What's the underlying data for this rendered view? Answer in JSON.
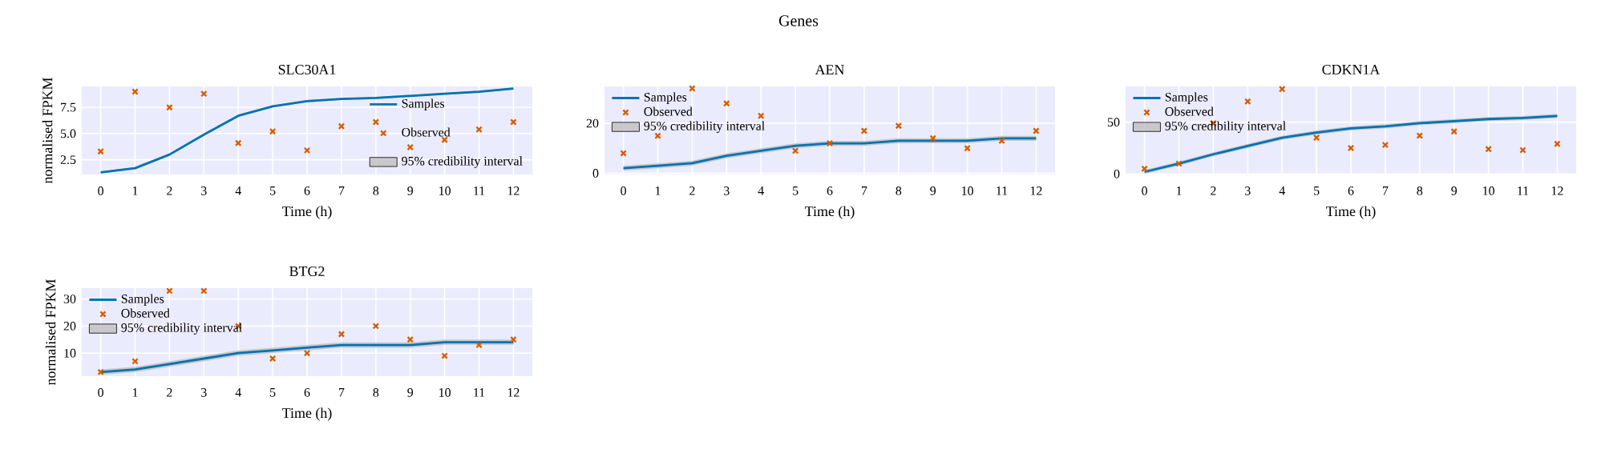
{
  "chart_data": [
    {
      "type": "line",
      "title": "SLC30A1",
      "ylabel": "normalised FPKM",
      "xlabel": "Time (h)",
      "annotations": [
        "Genes"
      ],
      "grid": true,
      "legend": "bottom right",
      "x": [
        0,
        1,
        2,
        3,
        4,
        5,
        6,
        7,
        8,
        9,
        10,
        11,
        12
      ],
      "xlim": [
        -0.55,
        12.55
      ],
      "xticks": [
        0,
        1,
        2,
        3,
        4,
        5,
        6,
        7,
        8,
        9,
        10,
        11,
        12
      ],
      "ylim": [
        1.1,
        9.5
      ],
      "yticks": [
        2.5,
        {
          "value": 5,
          "label": "5.0"
        },
        7.5
      ],
      "series": [
        {
          "name": "Samples",
          "type": "line",
          "color": "#0173b2",
          "marker": "none",
          "values": [
            1.3,
            1.7,
            3.0,
            4.9,
            6.7,
            7.6,
            8.1,
            8.3,
            8.4,
            8.6,
            8.8,
            9.0,
            9.3
          ]
        },
        {
          "name": "Observed",
          "type": "scatter",
          "color": "#d55e00",
          "marker": "cross",
          "values": [
            3.3,
            9.0,
            7.5,
            8.8,
            4.1,
            5.2,
            3.4,
            5.7,
            6.1,
            3.7,
            4.4,
            5.4,
            6.1
          ]
        },
        {
          "name": "95% credibility interval",
          "type": "line",
          "color": "#bfbfbf",
          "values": [
            null,
            null,
            null,
            null,
            null,
            null,
            null,
            null,
            null,
            null,
            null,
            null,
            null
          ],
          "lower": [
            1.2,
            1.6,
            2.9,
            4.8,
            6.6,
            7.5,
            8.0,
            8.2,
            8.3,
            8.5,
            8.7,
            8.9,
            9.2
          ],
          "upper": [
            1.4,
            1.8,
            3.1,
            5.0,
            6.8,
            7.7,
            8.2,
            8.4,
            8.5,
            8.7,
            8.9,
            9.1,
            9.4
          ]
        }
      ]
    },
    {
      "type": "line",
      "title": "AEN",
      "xlabel": "Time (h)",
      "grid": true,
      "legend": "top left",
      "x": [
        0,
        1,
        2,
        3,
        4,
        5,
        6,
        7,
        8,
        9,
        10,
        11,
        12
      ],
      "xlim": [
        -0.55,
        12.55
      ],
      "xticks": [
        0,
        1,
        2,
        3,
        4,
        5,
        6,
        7,
        8,
        9,
        10,
        11,
        12
      ],
      "ylim": [
        -0.5,
        34.8
      ],
      "yticks": [
        0,
        20
      ],
      "series": [
        {
          "name": "Samples",
          "type": "line",
          "color": "#0173b2",
          "marker": "none",
          "values": [
            2,
            3,
            4,
            7,
            9,
            11,
            12,
            12,
            13,
            13,
            13,
            14,
            14
          ]
        },
        {
          "name": "Observed",
          "type": "scatter",
          "color": "#d55e00",
          "marker": "cross",
          "values": [
            8,
            15,
            34,
            28,
            23,
            9,
            12,
            17,
            19,
            14,
            10,
            13,
            17
          ]
        },
        {
          "name": "95% credibility interval",
          "type": "line",
          "color": "#bfbfbf",
          "values": [
            null,
            null,
            null,
            null,
            null,
            null,
            null,
            null,
            null,
            null,
            null,
            null,
            null
          ],
          "lower": [
            1,
            2,
            3,
            6,
            8,
            10,
            11,
            11,
            12,
            12,
            12,
            13,
            13
          ],
          "upper": [
            3,
            4,
            5,
            8,
            10,
            12,
            13,
            13,
            14,
            14,
            14,
            15,
            15
          ]
        }
      ]
    },
    {
      "type": "line",
      "title": "CDKN1A",
      "xlabel": "Time (h)",
      "grid": true,
      "legend": "top left",
      "x": [
        0,
        1,
        2,
        3,
        4,
        5,
        6,
        7,
        8,
        9,
        10,
        11,
        12
      ],
      "xlim": [
        -0.55,
        12.55
      ],
      "xticks": [
        0,
        1,
        2,
        3,
        4,
        5,
        6,
        7,
        8,
        9,
        10,
        11,
        12
      ],
      "ylim": [
        -0.5,
        84.5
      ],
      "yticks": [
        0,
        50
      ],
      "series": [
        {
          "name": "Samples",
          "type": "line",
          "color": "#0173b2",
          "marker": "none",
          "values": [
            2,
            10,
            19,
            27,
            35,
            40,
            44,
            46,
            49,
            51,
            53,
            54,
            56
          ]
        },
        {
          "name": "Observed",
          "type": "scatter",
          "color": "#d55e00",
          "marker": "cross",
          "values": [
            5,
            10,
            49,
            70,
            82,
            35,
            25,
            28,
            37,
            41,
            24,
            23,
            29
          ]
        },
        {
          "name": "95% credibility interval",
          "type": "line",
          "color": "#bfbfbf",
          "values": [
            null,
            null,
            null,
            null,
            null,
            null,
            null,
            null,
            null,
            null,
            null,
            null,
            null
          ],
          "lower": [
            0,
            8,
            17,
            25,
            33,
            38,
            42,
            44,
            47,
            49,
            51,
            52,
            54
          ],
          "upper": [
            4,
            12,
            21,
            29,
            37,
            42,
            46,
            48,
            51,
            53,
            55,
            56,
            58
          ]
        }
      ]
    },
    {
      "type": "line",
      "title": "BTG2",
      "ylabel": "normalised FPKM",
      "xlabel": "Time (h)",
      "grid": true,
      "legend": "top left",
      "x": [
        0,
        1,
        2,
        3,
        4,
        5,
        6,
        7,
        8,
        9,
        10,
        11,
        12
      ],
      "xlim": [
        -0.55,
        12.55
      ],
      "xticks": [
        0,
        1,
        2,
        3,
        4,
        5,
        6,
        7,
        8,
        9,
        10,
        11,
        12
      ],
      "ylim": [
        1.5,
        34
      ],
      "yticks": [
        10,
        20,
        30
      ],
      "series": [
        {
          "name": "Samples",
          "type": "line",
          "color": "#0173b2",
          "marker": "none",
          "values": [
            3,
            4,
            6,
            8,
            10,
            11,
            12,
            13,
            13,
            13,
            14,
            14,
            14
          ]
        },
        {
          "name": "Observed",
          "type": "scatter",
          "color": "#d55e00",
          "marker": "cross",
          "values": [
            3,
            7,
            33,
            33,
            20,
            8,
            10,
            17,
            20,
            15,
            9,
            13,
            15
          ]
        },
        {
          "name": "95% credibility interval",
          "type": "line",
          "color": "#bfbfbf",
          "values": [
            null,
            null,
            null,
            null,
            null,
            null,
            null,
            null,
            null,
            null,
            null,
            null,
            null
          ],
          "lower": [
            2,
            3,
            5,
            7,
            9,
            10,
            11,
            12,
            12,
            12,
            13,
            13,
            13
          ],
          "upper": [
            4,
            5,
            7,
            9,
            11,
            12,
            13,
            14,
            14,
            14,
            15,
            15,
            15
          ]
        }
      ]
    }
  ]
}
